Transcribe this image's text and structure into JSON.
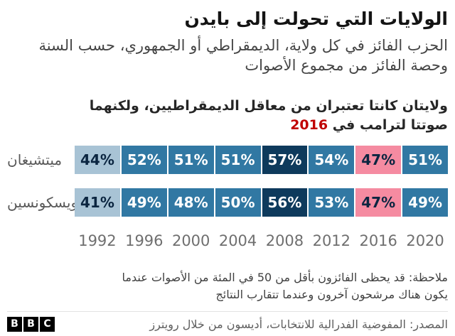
{
  "header": {
    "title": "الولايات التي تحولت إلى بايدن",
    "subtitle": "الحزب الفائز في كل ولاية، الديمقراطي أو الجمهوري، حسب السنة وحصة الفائز من مجموع الأصوات"
  },
  "annotation": {
    "text": "ولايتان كانتا تعتبران من معاقل الديمقراطيين، ولكنهما صوتتا لترامب في",
    "year": "2016",
    "year_color": "#c00000"
  },
  "chart_data": {
    "type": "heatmap",
    "categories": [
      "1992",
      "1996",
      "2000",
      "2004",
      "2008",
      "2012",
      "2016",
      "2020"
    ],
    "unit": "%",
    "series": [
      {
        "name": "ميتشيغان",
        "values": [
          44,
          52,
          51,
          51,
          57,
          54,
          47,
          51
        ],
        "winner_party": [
          "dem",
          "dem",
          "dem",
          "dem",
          "dem",
          "dem",
          "rep",
          "dem"
        ],
        "tiers": [
          "light",
          "mid",
          "mid",
          "mid",
          "dark",
          "mid",
          "pink",
          "mid"
        ]
      },
      {
        "name": "ويسكونسين",
        "values": [
          41,
          49,
          48,
          50,
          56,
          53,
          47,
          49
        ],
        "winner_party": [
          "dem",
          "dem",
          "dem",
          "dem",
          "dem",
          "dem",
          "rep",
          "dem"
        ],
        "tiers": [
          "light",
          "mid",
          "mid",
          "mid",
          "dark",
          "mid",
          "pink",
          "mid"
        ]
      }
    ],
    "legend": "none",
    "colors": {
      "light": "#a8c3d5",
      "mid": "#3178a3",
      "dark": "#0e3a5c",
      "pink": "#f58ba1",
      "dark_text": "#0b2540",
      "light_text": "#ffffff"
    }
  },
  "footer": {
    "note": "ملاحظة: قد يحظى الفائزون بأقل من 50 في المئة من الأصوات عندما يكون هناك مرشحون آخرون وعندما تتقارب النتائج",
    "source": "المصدر: المفوضية الفدرالية للانتخابات، أديسون من خلال رويترز",
    "logo_letters": [
      "B",
      "B",
      "C"
    ]
  }
}
